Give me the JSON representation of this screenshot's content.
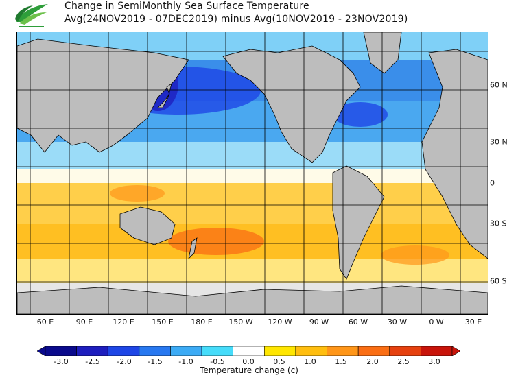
{
  "header": {
    "title": "Change in SemiMonthly Sea Surface Temperature",
    "subtitle": "Avg(24NOV2019 - 07DEC2019) minus Avg(10NOV2019 - 23NOV2019)"
  },
  "map": {
    "longitude_labels": [
      "60 E",
      "90 E",
      "120 E",
      "150 E",
      "180 E",
      "150 W",
      "120 W",
      "90 W",
      "60 W",
      "30 W",
      "0 W",
      "30 E"
    ],
    "latitude_labels": [
      "60 N",
      "30 N",
      "0",
      "30 S",
      "60 S"
    ],
    "land_color": "#bdbdbd",
    "ice_color": "#e6e6e6",
    "grid_color": "#000000"
  },
  "colorbar": {
    "ticks": [
      "-3.0",
      "-2.5",
      "-2.0",
      "-1.5",
      "-1.0",
      "-0.5",
      "0.0",
      "0.5",
      "1.0",
      "1.5",
      "2.0",
      "2.5",
      "3.0"
    ],
    "label": "Temperature change  (c)",
    "colors": [
      "#0a0a8c",
      "#1e1ebe",
      "#1e46e6",
      "#2878f0",
      "#3cabf5",
      "#46dcfa",
      "#ffffff",
      "#ffe600",
      "#ffbe0f",
      "#ff9619",
      "#fa6e14",
      "#e6410f",
      "#c8140a"
    ]
  }
}
